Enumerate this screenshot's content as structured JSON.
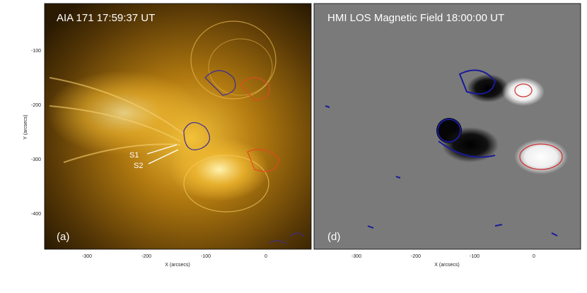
{
  "panels": [
    {
      "title": "AIA 171  17:59:37 UT",
      "label": "(a)",
      "annotations": [
        "S1",
        "S2"
      ],
      "x_axis_label": "X (arcsecs)",
      "y_axis_label": "Y (arcsecs)",
      "xticks": [
        -300,
        -200,
        -100,
        0
      ],
      "yticks": [
        -100,
        -200,
        -300,
        -400
      ]
    },
    {
      "title": "HMI LOS Magnetic Field  18:00:00 UT",
      "label": "(d)",
      "x_axis_label": "X (arcsecs)",
      "xticks": [
        -300,
        -200,
        -100,
        0
      ]
    }
  ]
}
